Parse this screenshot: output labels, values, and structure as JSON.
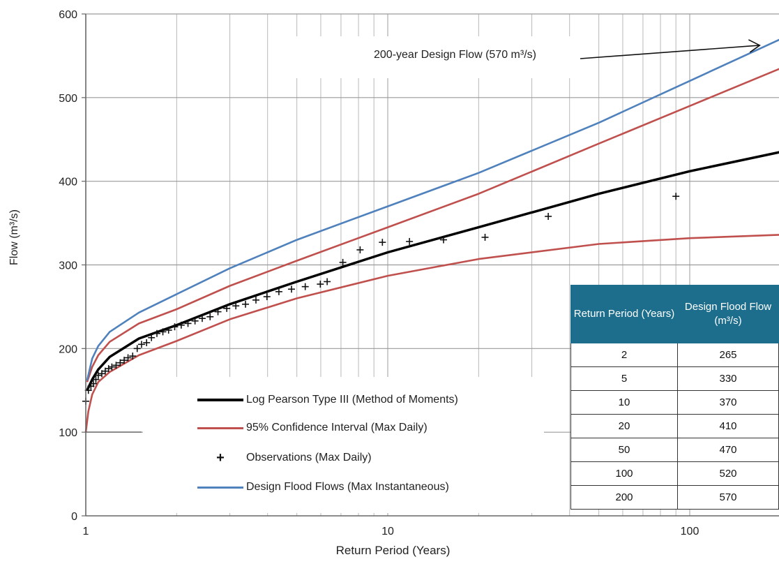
{
  "chart_data": {
    "type": "line",
    "xscale": "log",
    "xlim": [
      1,
      200
    ],
    "ylim": [
      0,
      600
    ],
    "xlabel": "Return Period (Years)",
    "ylabel": "Flow (m³/s)",
    "x_ticks": [
      "1",
      "10",
      "100"
    ],
    "y_ticks": [
      "0",
      "100",
      "200",
      "300",
      "400",
      "500",
      "600"
    ],
    "grid": true,
    "annotation": "200-year Design Flow (570 m³/s)",
    "series": [
      {
        "name": "Log Pearson Type III (Method of Moments)",
        "color": "#000000",
        "x": [
          1.01,
          1.05,
          1.1,
          1.2,
          1.5,
          2,
          3,
          5,
          10,
          20,
          50,
          100,
          200
        ],
        "y": [
          150,
          163,
          175,
          190,
          212,
          228,
          253,
          280,
          315,
          345,
          385,
          412,
          435
        ]
      },
      {
        "name": "95% Confidence Interval (Max Daily)",
        "color": "#c0504d",
        "x": [
          1.01,
          1.05,
          1.1,
          1.2,
          1.5,
          2,
          3,
          5,
          10,
          20,
          50,
          100,
          200
        ],
        "y": [
          160,
          178,
          192,
          208,
          230,
          247,
          275,
          305,
          345,
          385,
          445,
          490,
          535
        ]
      },
      {
        "name": "95% Confidence Interval (Max Daily)",
        "color": "#c0504d",
        "x": [
          1.0,
          1.02,
          1.05,
          1.1,
          1.2,
          1.5,
          2,
          3,
          5,
          10,
          20,
          50,
          100,
          200
        ],
        "y": [
          100,
          125,
          145,
          160,
          172,
          192,
          209,
          235,
          260,
          287,
          307,
          325,
          332,
          336
        ]
      },
      {
        "name": "Design Flood Flows (Max Instantaneous)",
        "color": "#4f81bd",
        "x": [
          1.01,
          1.05,
          1.1,
          1.2,
          1.5,
          2,
          3,
          5,
          10,
          20,
          50,
          100,
          200
        ],
        "y": [
          162,
          188,
          203,
          220,
          243,
          265,
          296,
          330,
          370,
          410,
          470,
          520,
          570
        ]
      }
    ],
    "observations": {
      "name": "Observations (Max Daily)",
      "x": [
        1.0,
        1.02,
        1.04,
        1.06,
        1.08,
        1.1,
        1.13,
        1.16,
        1.19,
        1.22,
        1.26,
        1.3,
        1.34,
        1.38,
        1.43,
        1.48,
        1.53,
        1.59,
        1.65,
        1.72,
        1.8,
        1.88,
        1.97,
        2.07,
        2.18,
        2.3,
        2.43,
        2.58,
        2.74,
        2.93,
        3.14,
        3.38,
        3.66,
        3.98,
        4.36,
        4.8,
        5.33,
        5.98,
        6.3,
        7.1,
        8.1,
        9.6,
        11.8,
        15.3,
        21,
        34,
        90
      ],
      "y": [
        137,
        150,
        155,
        158,
        163,
        168,
        170,
        173,
        176,
        178,
        180,
        183,
        186,
        189,
        191,
        200,
        205,
        207,
        213,
        218,
        220,
        222,
        226,
        228,
        230,
        233,
        236,
        238,
        244,
        248,
        251,
        253,
        258,
        262,
        268,
        271,
        274,
        277,
        280,
        303,
        318,
        327,
        328,
        330,
        333,
        358,
        382
      ]
    }
  },
  "legend": [
    {
      "label": "Log Pearson Type III (Method of Moments)",
      "kind": "line",
      "color": "#000000"
    },
    {
      "label": "95% Confidence Interval (Max Daily)",
      "kind": "line",
      "color": "#c0504d"
    },
    {
      "label": "Observations (Max Daily)",
      "kind": "marker",
      "symbol": "+"
    },
    {
      "label": "Design Flood Flows (Max Instantaneous)",
      "kind": "line",
      "color": "#4f81bd"
    }
  ],
  "table": {
    "headers": [
      "Return Period (Years)",
      "Design Flood Flow (m³/s)"
    ],
    "rows": [
      [
        "2",
        "265"
      ],
      [
        "5",
        "330"
      ],
      [
        "10",
        "370"
      ],
      [
        "20",
        "410"
      ],
      [
        "50",
        "470"
      ],
      [
        "100",
        "520"
      ],
      [
        "200",
        "570"
      ]
    ]
  }
}
